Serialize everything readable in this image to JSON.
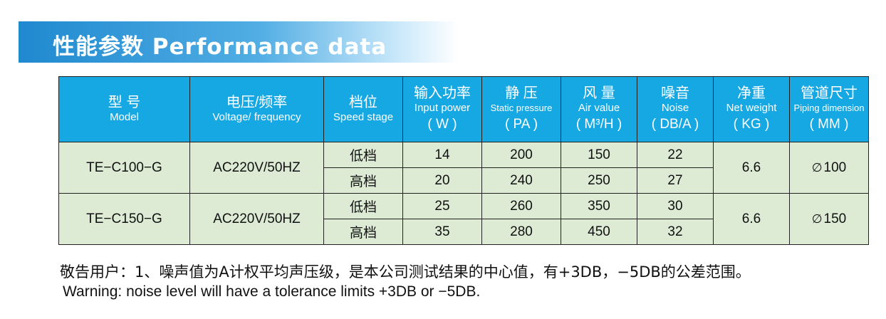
{
  "banner": {
    "title": "性能参数 Performance data"
  },
  "colors": {
    "banner": "#1f89cf",
    "header_bg": "#16a8e3",
    "body_bg": "#ddebd5"
  },
  "table": {
    "headers": [
      {
        "zh": "型 号",
        "en": "Model",
        "unit": ""
      },
      {
        "zh": "电压/频率",
        "en": "Voltage/ frequency",
        "unit": ""
      },
      {
        "zh": "档位",
        "en": "Speed stage",
        "unit": ""
      },
      {
        "zh": "输入功率",
        "en": "Input power",
        "unit": "( W )"
      },
      {
        "zh": "静 压",
        "en": "Static pressure",
        "unit": "( PA )"
      },
      {
        "zh": "风 量",
        "en": "Air value",
        "unit": "( M³/H )"
      },
      {
        "zh": "噪音",
        "en": "Noise",
        "unit": "( DB/A )"
      },
      {
        "zh": "净重",
        "en": "Net weight",
        "unit": "( KG )"
      },
      {
        "zh": "管道尺寸",
        "en": "Piping dimension",
        "unit": "( MM )"
      }
    ],
    "diameter_symbol": "∅",
    "models": [
      {
        "model": "TE−C100−G",
        "voltage": "AC220V/50HZ",
        "weight": "6.6",
        "pipe": "100",
        "stages": [
          {
            "stage": "低档",
            "power": "14",
            "pressure": "200",
            "air": "150",
            "noise": "22"
          },
          {
            "stage": "高档",
            "power": "20",
            "pressure": "240",
            "air": "250",
            "noise": "27"
          }
        ]
      },
      {
        "model": "TE−C150−G",
        "voltage": "AC220V/50HZ",
        "weight": "6.6",
        "pipe": "150",
        "stages": [
          {
            "stage": "低档",
            "power": "25",
            "pressure": "260",
            "air": "350",
            "noise": "30"
          },
          {
            "stage": "高档",
            "power": "35",
            "pressure": "280",
            "air": "450",
            "noise": "32"
          }
        ]
      }
    ]
  },
  "note": {
    "zh": "敬告用户：1、噪声值为A计权平均声压级，是本公司测试结果的中心值，有+3DB，−5DB的公差范围。",
    "en": "Warning: noise level will have a tolerance limits +3DB or −5DB."
  }
}
